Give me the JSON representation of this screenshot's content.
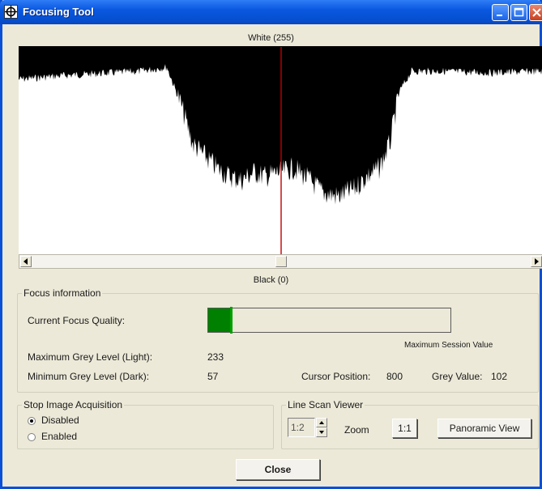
{
  "window": {
    "title": "Focusing Tool"
  },
  "plot": {
    "top_label": "White (255)",
    "bottom_label": "Black (0)"
  },
  "chart_data": {
    "type": "area",
    "title": "",
    "ylim": [
      0,
      255
    ],
    "y_top_label": "White (255)",
    "y_bottom_label": "Black (0)",
    "series_color": "#000000",
    "cursor_color": "#c00000",
    "cursor_position": 800
  },
  "focus_info": {
    "group_title": "Focus information",
    "current_quality_label": "Current Focus Quality:",
    "current_quality": 0.1,
    "max_session_label": "Maximum Session Value",
    "max_grey_label": "Maximum Grey Level (Light):",
    "max_grey_value": "233",
    "min_grey_label": "Minimum Grey Level (Dark):",
    "min_grey_value": "57",
    "cursor_position_label": "Cursor Position:",
    "cursor_position_value": "800",
    "grey_value_label": "Grey Value:",
    "grey_value": "102"
  },
  "stop_acquisition": {
    "group_title": "Stop Image Acquisition",
    "options": [
      "Disabled",
      "Enabled"
    ],
    "selected": "Disabled"
  },
  "line_scan": {
    "group_title": "Line Scan Viewer",
    "zoom_value": "1:2",
    "zoom_label": "Zoom",
    "reset_button": "1:1",
    "panoramic_button": "Panoramic View"
  },
  "footer": {
    "close_button": "Close"
  },
  "colors": {
    "title_bar": "#0b58e0",
    "meter_fill": "#008000",
    "cursor_line": "#c00000"
  }
}
